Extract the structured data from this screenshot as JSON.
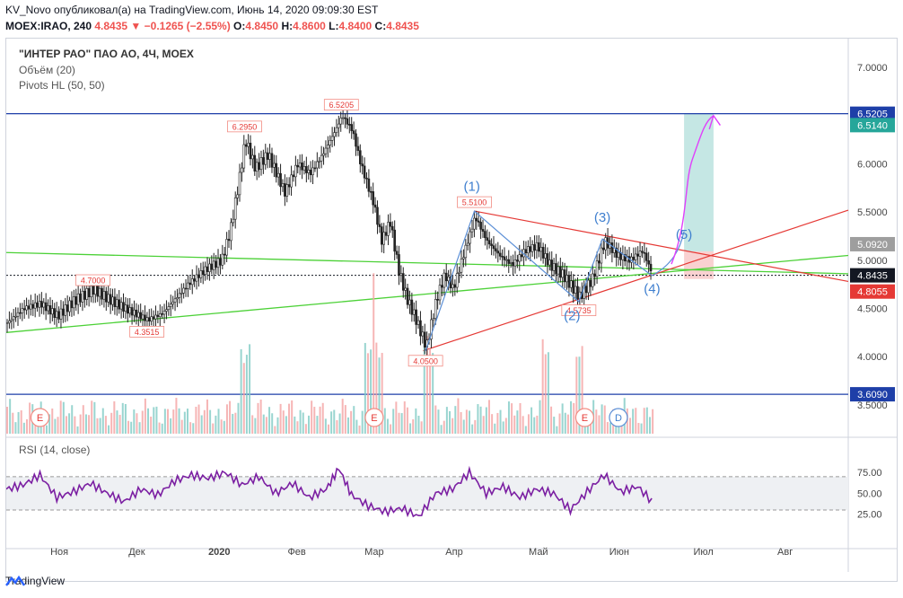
{
  "header": {
    "line1": "KV_Novo опубликовал(а) на TradingView.com, Июнь 14, 2020 09:09:30 EST",
    "symbol": "MOEX:IRAO, 240",
    "price": "4.8435",
    "change": "▼ −0.1265 (−2.55%)",
    "ohlc": {
      "o_label": "O:",
      "o": "4.8450",
      "h_label": "H:",
      "h": "4.8600",
      "l_label": "L:",
      "l": "4.8400",
      "c_label": "C:",
      "c": "4.8435"
    }
  },
  "legend": {
    "title": "\"ИНТЕР РАО\" ПАО АО, 4Ч, MOEX",
    "volume": "Объём (20)",
    "pivots": "Pivots HL (50, 50)",
    "rsi": "RSI (14, close)"
  },
  "brand": "TradingView",
  "chart_data": {
    "type": "candlestick",
    "price_axis": {
      "ticks": [
        "7.0000",
        "6.5000",
        "6.0000",
        "5.5000",
        "5.0000",
        "4.5000",
        "4.0000",
        "3.5000"
      ],
      "range": [
        3.2,
        7.3
      ]
    },
    "time_axis": {
      "ticks": [
        "Ноя",
        "Дек",
        "2020",
        "Фев",
        "Мар",
        "Апр",
        "Май",
        "Июн",
        "Июл",
        "Авг"
      ]
    },
    "price_markers": [
      {
        "value": "6.5205",
        "color": "#1e3fa8"
      },
      {
        "value": "6.5140",
        "color": "#26a69a"
      },
      {
        "value": "5.0920",
        "color": "#9e9e9e"
      },
      {
        "value": "4.8435",
        "color": "#131722"
      },
      {
        "value": "4.8055",
        "color": "#e53935"
      },
      {
        "value": "3.6090",
        "color": "#1e3fa8"
      }
    ],
    "pivot_labels": [
      {
        "text": "6.5205",
        "t": 0.398,
        "v": 6.5205
      },
      {
        "text": "6.2950",
        "t": 0.283,
        "v": 6.295
      },
      {
        "text": "5.5100",
        "t": 0.556,
        "v": 5.51
      },
      {
        "text": "4.7000",
        "t": 0.103,
        "v": 4.7
      },
      {
        "text": "4.3515",
        "t": 0.167,
        "v": 4.3515
      },
      {
        "text": "4.5735",
        "t": 0.68,
        "v": 4.5735
      },
      {
        "text": "4.0500",
        "t": 0.498,
        "v": 4.05
      }
    ],
    "wave_labels": [
      {
        "text": "(1)",
        "t": 0.553,
        "v": 5.72
      },
      {
        "text": "(2)",
        "t": 0.672,
        "v": 4.38
      },
      {
        "text": "(3)",
        "t": 0.708,
        "v": 5.4
      },
      {
        "text": "(4)",
        "t": 0.767,
        "v": 4.66
      },
      {
        "text": "(5)",
        "t": 0.805,
        "v": 5.22
      }
    ],
    "price_path": [
      [
        0.0,
        4.35
      ],
      [
        0.02,
        4.5
      ],
      [
        0.04,
        4.55
      ],
      [
        0.06,
        4.42
      ],
      [
        0.08,
        4.58
      ],
      [
        0.103,
        4.7
      ],
      [
        0.12,
        4.6
      ],
      [
        0.14,
        4.5
      ],
      [
        0.167,
        4.38
      ],
      [
        0.185,
        4.45
      ],
      [
        0.2,
        4.6
      ],
      [
        0.215,
        4.75
      ],
      [
        0.235,
        4.9
      ],
      [
        0.255,
        5.0
      ],
      [
        0.265,
        5.3
      ],
      [
        0.275,
        5.8
      ],
      [
        0.283,
        6.25
      ],
      [
        0.295,
        5.95
      ],
      [
        0.31,
        6.1
      ],
      [
        0.33,
        5.7
      ],
      [
        0.345,
        6.0
      ],
      [
        0.36,
        5.9
      ],
      [
        0.375,
        6.1
      ],
      [
        0.39,
        6.35
      ],
      [
        0.398,
        6.5
      ],
      [
        0.41,
        6.35
      ],
      [
        0.42,
        6.0
      ],
      [
        0.435,
        5.6
      ],
      [
        0.445,
        5.2
      ],
      [
        0.455,
        5.4
      ],
      [
        0.465,
        4.9
      ],
      [
        0.475,
        4.6
      ],
      [
        0.485,
        4.4
      ],
      [
        0.498,
        4.1
      ],
      [
        0.51,
        4.6
      ],
      [
        0.52,
        4.85
      ],
      [
        0.53,
        4.7
      ],
      [
        0.54,
        5.0
      ],
      [
        0.556,
        5.45
      ],
      [
        0.57,
        5.2
      ],
      [
        0.585,
        5.05
      ],
      [
        0.6,
        4.95
      ],
      [
        0.615,
        5.1
      ],
      [
        0.63,
        5.15
      ],
      [
        0.645,
        4.95
      ],
      [
        0.66,
        4.85
      ],
      [
        0.68,
        4.62
      ],
      [
        0.695,
        4.8
      ],
      [
        0.71,
        5.2
      ],
      [
        0.725,
        5.05
      ],
      [
        0.74,
        5.0
      ],
      [
        0.755,
        5.1
      ],
      [
        0.767,
        4.84
      ]
    ],
    "volume_spikes": [
      0.283,
      0.43,
      0.44,
      0.5,
      0.64,
      0.68
    ],
    "events": [
      {
        "text": "E",
        "t": 0.04
      },
      {
        "text": "E",
        "t": 0.437
      },
      {
        "text": "E",
        "t": 0.687
      },
      {
        "text": "D",
        "t": 0.727
      }
    ],
    "rsi": {
      "ticks": [
        "75.00",
        "50.00",
        "25.00"
      ],
      "band": [
        30,
        70
      ],
      "path": [
        [
          0.0,
          55
        ],
        [
          0.02,
          60
        ],
        [
          0.04,
          72
        ],
        [
          0.06,
          45
        ],
        [
          0.08,
          52
        ],
        [
          0.1,
          62
        ],
        [
          0.12,
          50
        ],
        [
          0.14,
          40
        ],
        [
          0.16,
          55
        ],
        [
          0.18,
          48
        ],
        [
          0.2,
          65
        ],
        [
          0.22,
          72
        ],
        [
          0.24,
          68
        ],
        [
          0.26,
          75
        ],
        [
          0.28,
          60
        ],
        [
          0.3,
          70
        ],
        [
          0.32,
          50
        ],
        [
          0.34,
          62
        ],
        [
          0.36,
          45
        ],
        [
          0.38,
          55
        ],
        [
          0.395,
          80
        ],
        [
          0.41,
          48
        ],
        [
          0.43,
          35
        ],
        [
          0.45,
          28
        ],
        [
          0.47,
          32
        ],
        [
          0.49,
          22
        ],
        [
          0.51,
          50
        ],
        [
          0.53,
          55
        ],
        [
          0.55,
          75
        ],
        [
          0.57,
          50
        ],
        [
          0.59,
          58
        ],
        [
          0.61,
          45
        ],
        [
          0.63,
          55
        ],
        [
          0.65,
          50
        ],
        [
          0.67,
          30
        ],
        [
          0.69,
          52
        ],
        [
          0.71,
          72
        ],
        [
          0.73,
          52
        ],
        [
          0.75,
          58
        ],
        [
          0.77,
          37
        ]
      ]
    }
  }
}
